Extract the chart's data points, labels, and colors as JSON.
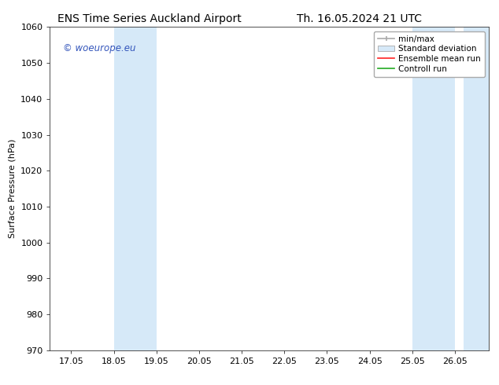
{
  "title_left": "ENS Time Series Auckland Airport",
  "title_right": "Th. 16.05.2024 21 UTC",
  "ylabel": "Surface Pressure (hPa)",
  "ylim": [
    970,
    1060
  ],
  "yticks": [
    970,
    980,
    990,
    1000,
    1010,
    1020,
    1030,
    1040,
    1050,
    1060
  ],
  "xtick_labels": [
    "17.05",
    "18.05",
    "19.05",
    "20.05",
    "21.05",
    "22.05",
    "23.05",
    "24.05",
    "25.05",
    "26.05"
  ],
  "xtick_positions": [
    0,
    1,
    2,
    3,
    4,
    5,
    6,
    7,
    8,
    9
  ],
  "xlim": [
    -0.5,
    9.8
  ],
  "shaded_regions": [
    {
      "x_start": 1.0,
      "x_end": 2.0
    },
    {
      "x_start": 8.0,
      "x_end": 9.0
    },
    {
      "x_start": 9.2,
      "x_end": 9.8
    }
  ],
  "shade_color": "#d6e9f8",
  "watermark_text": "© woeurope.eu",
  "watermark_color": "#3355bb",
  "legend_labels": [
    "min/max",
    "Standard deviation",
    "Ensemble mean run",
    "Controll run"
  ],
  "legend_line_colors": [
    "#999999",
    "#bbccdd",
    "#ff0000",
    "#00aa00"
  ],
  "bg_color": "#ffffff",
  "font_size": 8,
  "title_font_size": 10
}
